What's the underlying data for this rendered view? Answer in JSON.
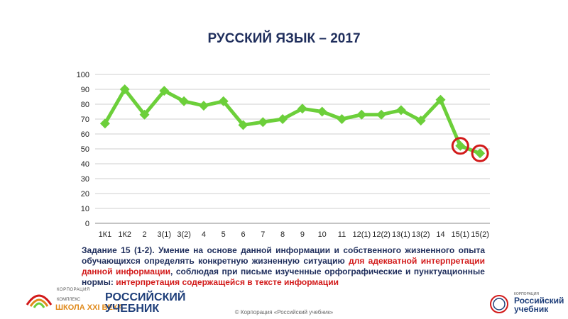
{
  "title": "РУССКИЙ ЯЗЫК – 2017",
  "chart_data": {
    "type": "line",
    "categories": [
      "1К1",
      "1К2",
      "2",
      "3(1)",
      "3(2)",
      "4",
      "5",
      "6",
      "7",
      "8",
      "9",
      "10",
      "11",
      "12(1)",
      "12(2)",
      "13(1)",
      "13(2)",
      "14",
      "15(1)",
      "15(2)"
    ],
    "values": [
      67,
      90,
      73,
      89,
      82,
      79,
      82,
      66,
      68,
      70,
      77,
      75,
      70,
      73,
      73,
      76,
      69,
      83,
      52,
      47
    ],
    "ylim": [
      0,
      100
    ],
    "yticks": [
      "0",
      "10",
      "20",
      "30",
      "40",
      "50",
      "60",
      "70",
      "80",
      "90",
      "100"
    ],
    "grid": true,
    "line_color": "#6ccf3a",
    "highlight_color": "#d21a1a",
    "highlighted": [
      "15(1)",
      "15(2)"
    ]
  },
  "description": {
    "part1": "Задание 15 (1-2). Умение на основе данной информации и собственного жизненного опыта обучающихся определять конкретную жизненную ситуацию ",
    "part2": "для адекватной интерпретации данной информации",
    "part3": ", соблюдая при письме изученные орфографические и пунктуационные нормы: ",
    "part4": "интерпретация содержащейся в тексте информации"
  },
  "footer": "© Корпорация «Российский учебник»",
  "logo_left": {
    "line1": "КОРПОРАЦИЯ",
    "line2": "РОССИЙСКИЙ",
    "line3": "УЧЕБНИК",
    "small": "КОМПЛЕКС",
    "school": "ШКОЛА XXI ВЕКА"
  },
  "logo_right": {
    "small": "КОРПОРАЦИЯ",
    "name1": "Российский",
    "name2": "учебник"
  }
}
